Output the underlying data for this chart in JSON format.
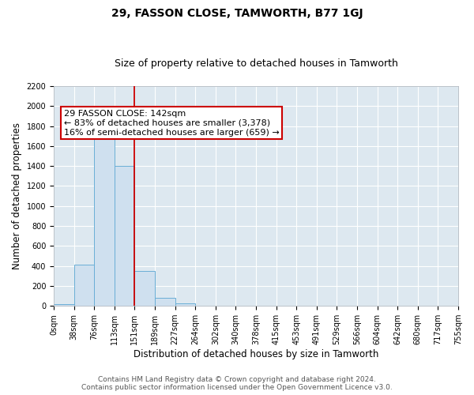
{
  "title": "29, FASSON CLOSE, TAMWORTH, B77 1GJ",
  "subtitle": "Size of property relative to detached houses in Tamworth",
  "xlabel": "Distribution of detached houses by size in Tamworth",
  "ylabel": "Number of detached properties",
  "bin_labels": [
    "0sqm",
    "38sqm",
    "76sqm",
    "113sqm",
    "151sqm",
    "189sqm",
    "227sqm",
    "264sqm",
    "302sqm",
    "340sqm",
    "378sqm",
    "415sqm",
    "453sqm",
    "491sqm",
    "529sqm",
    "566sqm",
    "604sqm",
    "642sqm",
    "680sqm",
    "717sqm",
    "755sqm"
  ],
  "bar_heights": [
    15,
    415,
    1810,
    1400,
    350,
    80,
    25,
    0,
    0,
    0,
    0,
    0,
    0,
    0,
    0,
    0,
    0,
    0,
    0,
    0
  ],
  "bar_color": "#cfe0ef",
  "bar_edgecolor": "#6aaed6",
  "vline_x": 4.0,
  "vline_color": "#cc0000",
  "annotation_title": "29 FASSON CLOSE: 142sqm",
  "annotation_line1": "← 83% of detached houses are smaller (3,378)",
  "annotation_line2": "16% of semi-detached houses are larger (659) →",
  "annotation_box_edgecolor": "#cc0000",
  "ylim": [
    0,
    2200
  ],
  "yticks": [
    0,
    200,
    400,
    600,
    800,
    1000,
    1200,
    1400,
    1600,
    1800,
    2000,
    2200
  ],
  "footer_line1": "Contains HM Land Registry data © Crown copyright and database right 2024.",
  "footer_line2": "Contains public sector information licensed under the Open Government Licence v3.0.",
  "plot_bg_color": "#dde8f0",
  "fig_bg_color": "#ffffff",
  "grid_color": "#ffffff",
  "title_fontsize": 10,
  "subtitle_fontsize": 9,
  "axis_label_fontsize": 8.5,
  "tick_fontsize": 7,
  "annotation_fontsize": 8,
  "footer_fontsize": 6.5
}
